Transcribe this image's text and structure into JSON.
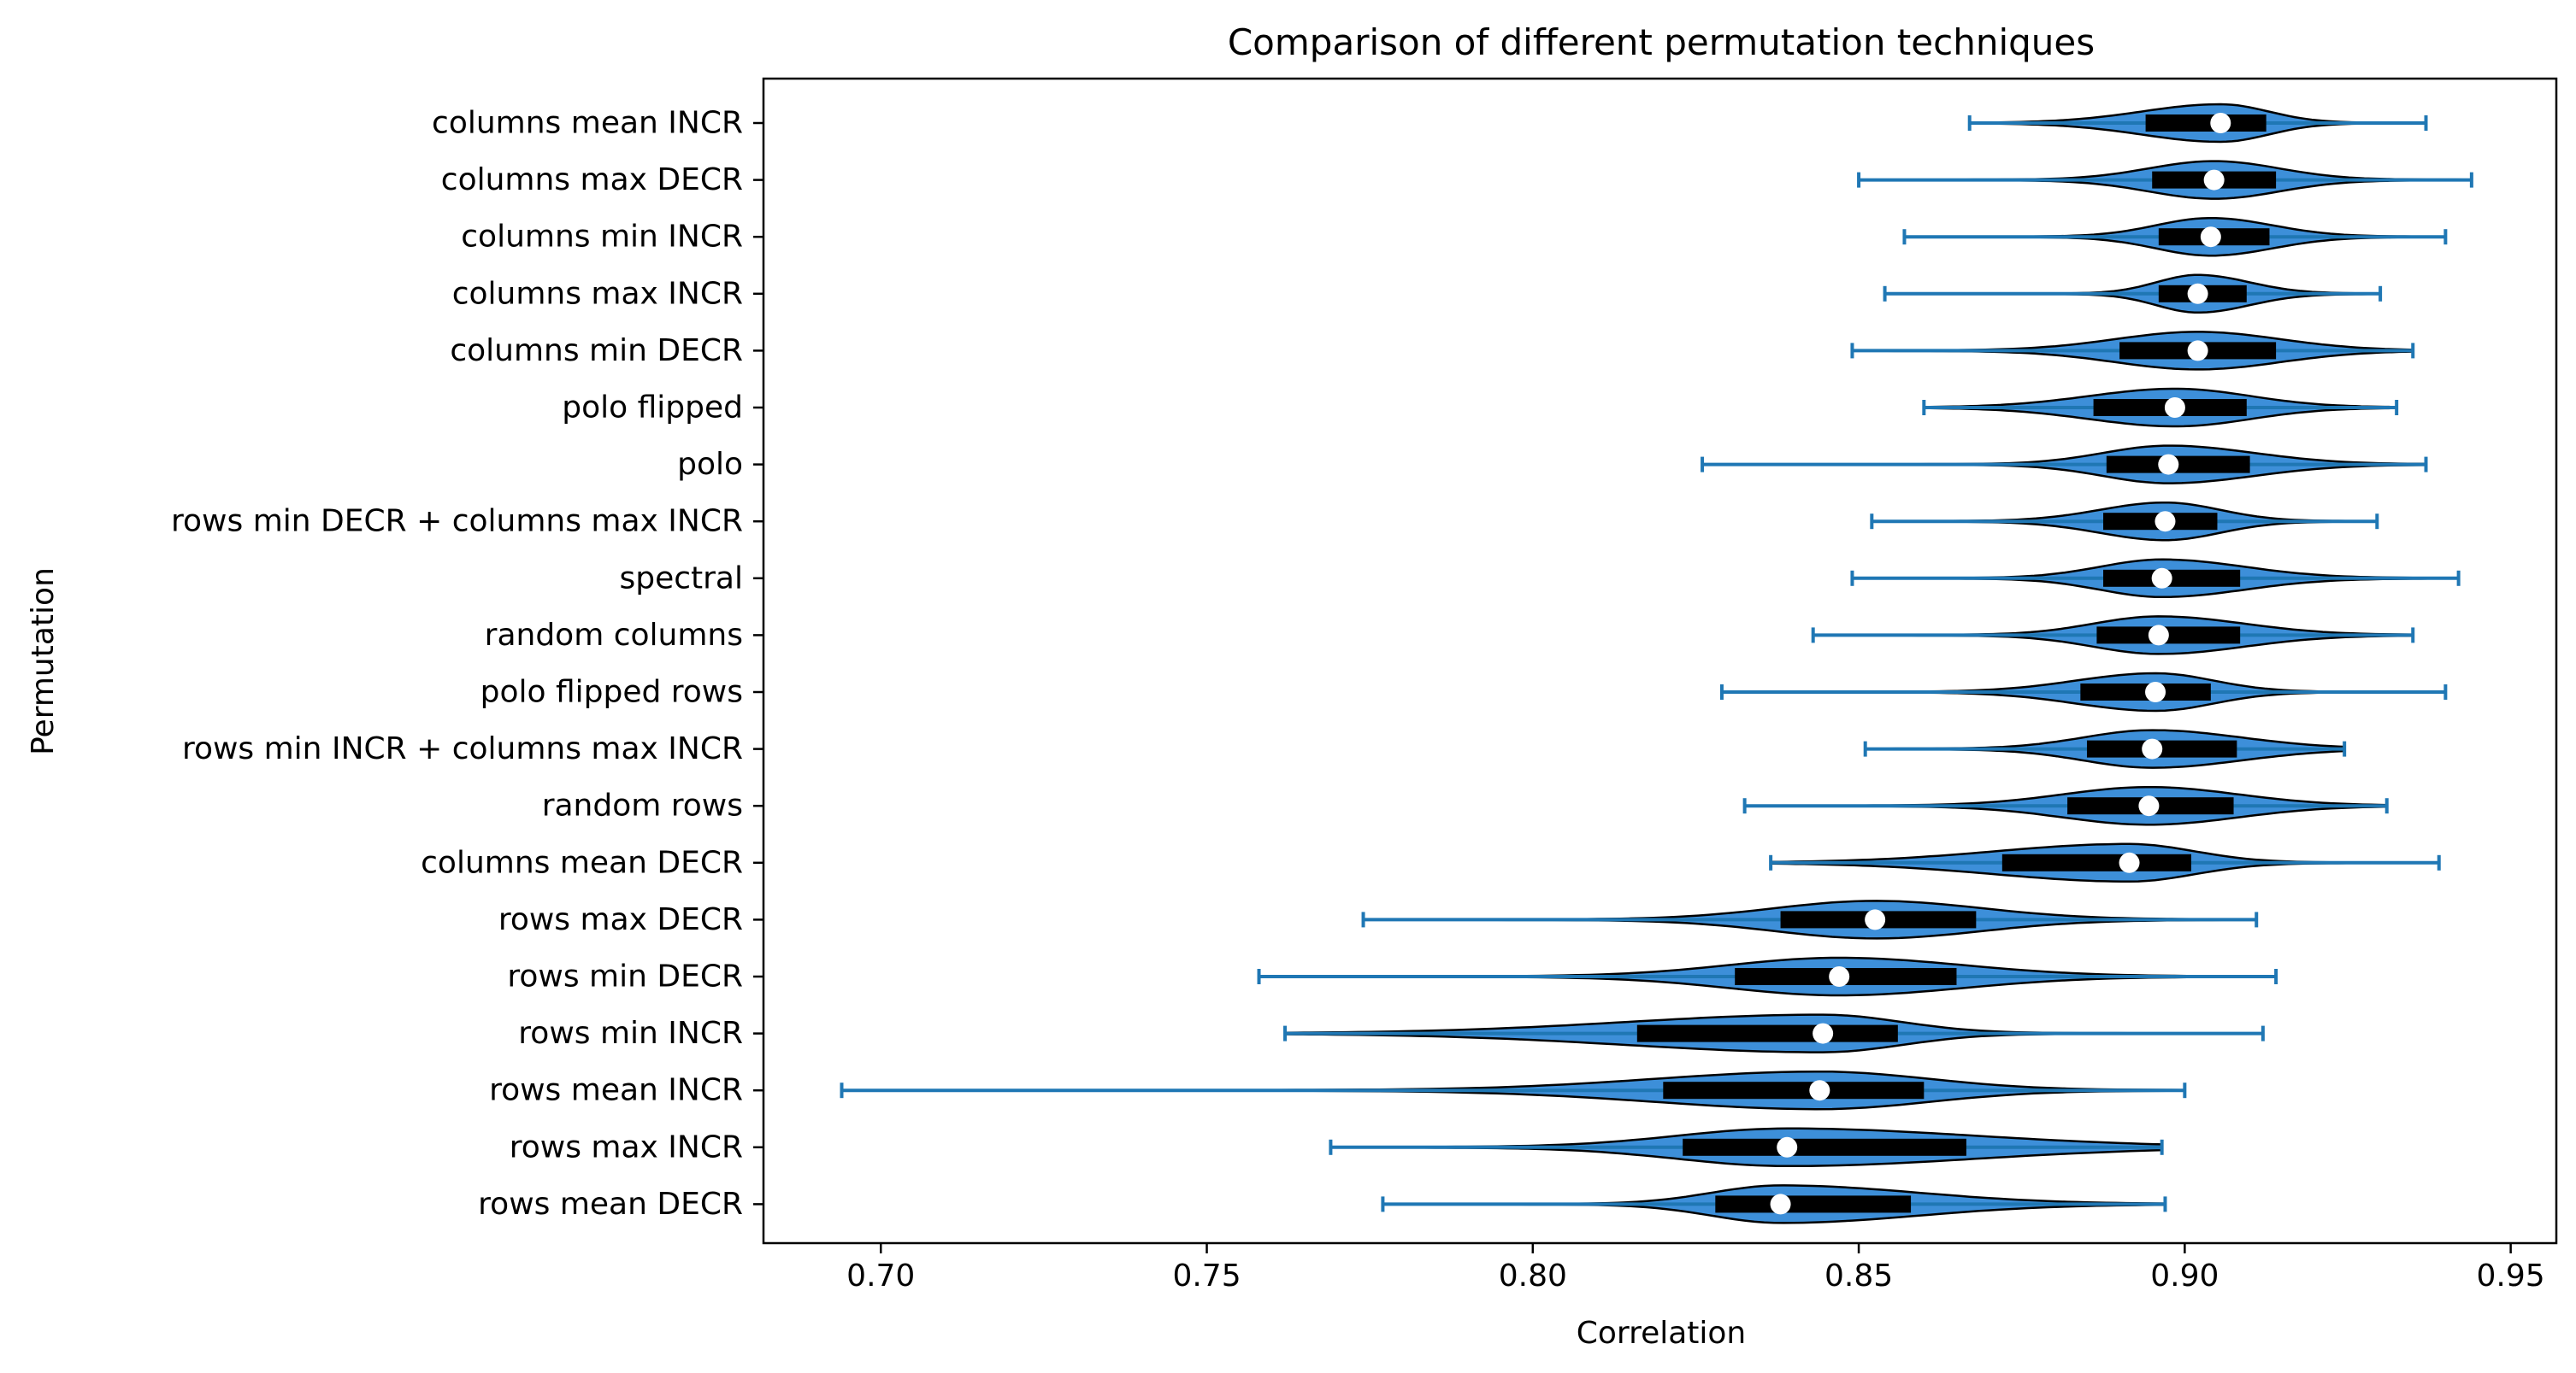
{
  "chart_data": {
    "type": "violin",
    "orientation": "horizontal",
    "title": "Comparison of different permutation techniques",
    "xlabel": "Correlation",
    "ylabel": "Permutation",
    "xlim": [
      0.682,
      0.957
    ],
    "xticks": [
      0.7,
      0.75,
      0.8,
      0.85,
      0.9,
      0.95
    ],
    "xtick_labels": [
      "0.70",
      "0.75",
      "0.80",
      "0.85",
      "0.90",
      "0.95"
    ],
    "grid": false,
    "colors": {
      "body": "#3d8fd9",
      "whisker": "#1f77b4",
      "box": "#000000",
      "median": "#ffffff",
      "outline": "#000000"
    },
    "categories": [
      "columns mean INCR",
      "columns max DECR",
      "columns min INCR",
      "columns max INCR",
      "columns min DECR",
      "polo flipped",
      "polo",
      "rows min DECR + columns max INCR",
      "spectral",
      "random columns",
      "polo flipped rows",
      "rows min INCR + columns max INCR",
      "random rows",
      "columns mean DECR",
      "rows max DECR",
      "rows min DECR",
      "rows min INCR",
      "rows mean INCR",
      "rows max INCR",
      "rows mean DECR"
    ],
    "series": [
      {
        "min": 0.867,
        "q1": 0.894,
        "median": 0.9055,
        "q3": 0.9125,
        "max": 0.937
      },
      {
        "min": 0.85,
        "q1": 0.895,
        "median": 0.9045,
        "q3": 0.914,
        "max": 0.944
      },
      {
        "min": 0.857,
        "q1": 0.896,
        "median": 0.904,
        "q3": 0.913,
        "max": 0.94
      },
      {
        "min": 0.854,
        "q1": 0.896,
        "median": 0.902,
        "q3": 0.9095,
        "max": 0.93
      },
      {
        "min": 0.849,
        "q1": 0.89,
        "median": 0.902,
        "q3": 0.914,
        "max": 0.935
      },
      {
        "min": 0.86,
        "q1": 0.886,
        "median": 0.8985,
        "q3": 0.9095,
        "max": 0.9325
      },
      {
        "min": 0.826,
        "q1": 0.888,
        "median": 0.8975,
        "q3": 0.91,
        "max": 0.937
      },
      {
        "min": 0.852,
        "q1": 0.8875,
        "median": 0.897,
        "q3": 0.905,
        "max": 0.9295
      },
      {
        "min": 0.849,
        "q1": 0.8875,
        "median": 0.8965,
        "q3": 0.9085,
        "max": 0.942
      },
      {
        "min": 0.843,
        "q1": 0.8865,
        "median": 0.896,
        "q3": 0.9085,
        "max": 0.935
      },
      {
        "min": 0.829,
        "q1": 0.884,
        "median": 0.8955,
        "q3": 0.904,
        "max": 0.94
      },
      {
        "min": 0.851,
        "q1": 0.885,
        "median": 0.895,
        "q3": 0.908,
        "max": 0.9245
      },
      {
        "min": 0.8325,
        "q1": 0.882,
        "median": 0.8945,
        "q3": 0.9075,
        "max": 0.931
      },
      {
        "min": 0.8365,
        "q1": 0.872,
        "median": 0.8915,
        "q3": 0.901,
        "max": 0.939
      },
      {
        "min": 0.774,
        "q1": 0.838,
        "median": 0.8525,
        "q3": 0.868,
        "max": 0.911
      },
      {
        "min": 0.758,
        "q1": 0.831,
        "median": 0.847,
        "q3": 0.865,
        "max": 0.914
      },
      {
        "min": 0.762,
        "q1": 0.816,
        "median": 0.8445,
        "q3": 0.856,
        "max": 0.912
      },
      {
        "min": 0.694,
        "q1": 0.82,
        "median": 0.844,
        "q3": 0.86,
        "max": 0.9
      },
      {
        "min": 0.769,
        "q1": 0.823,
        "median": 0.839,
        "q3": 0.8665,
        "max": 0.8965
      },
      {
        "min": 0.777,
        "q1": 0.828,
        "median": 0.838,
        "q3": 0.858,
        "max": 0.897
      }
    ]
  }
}
